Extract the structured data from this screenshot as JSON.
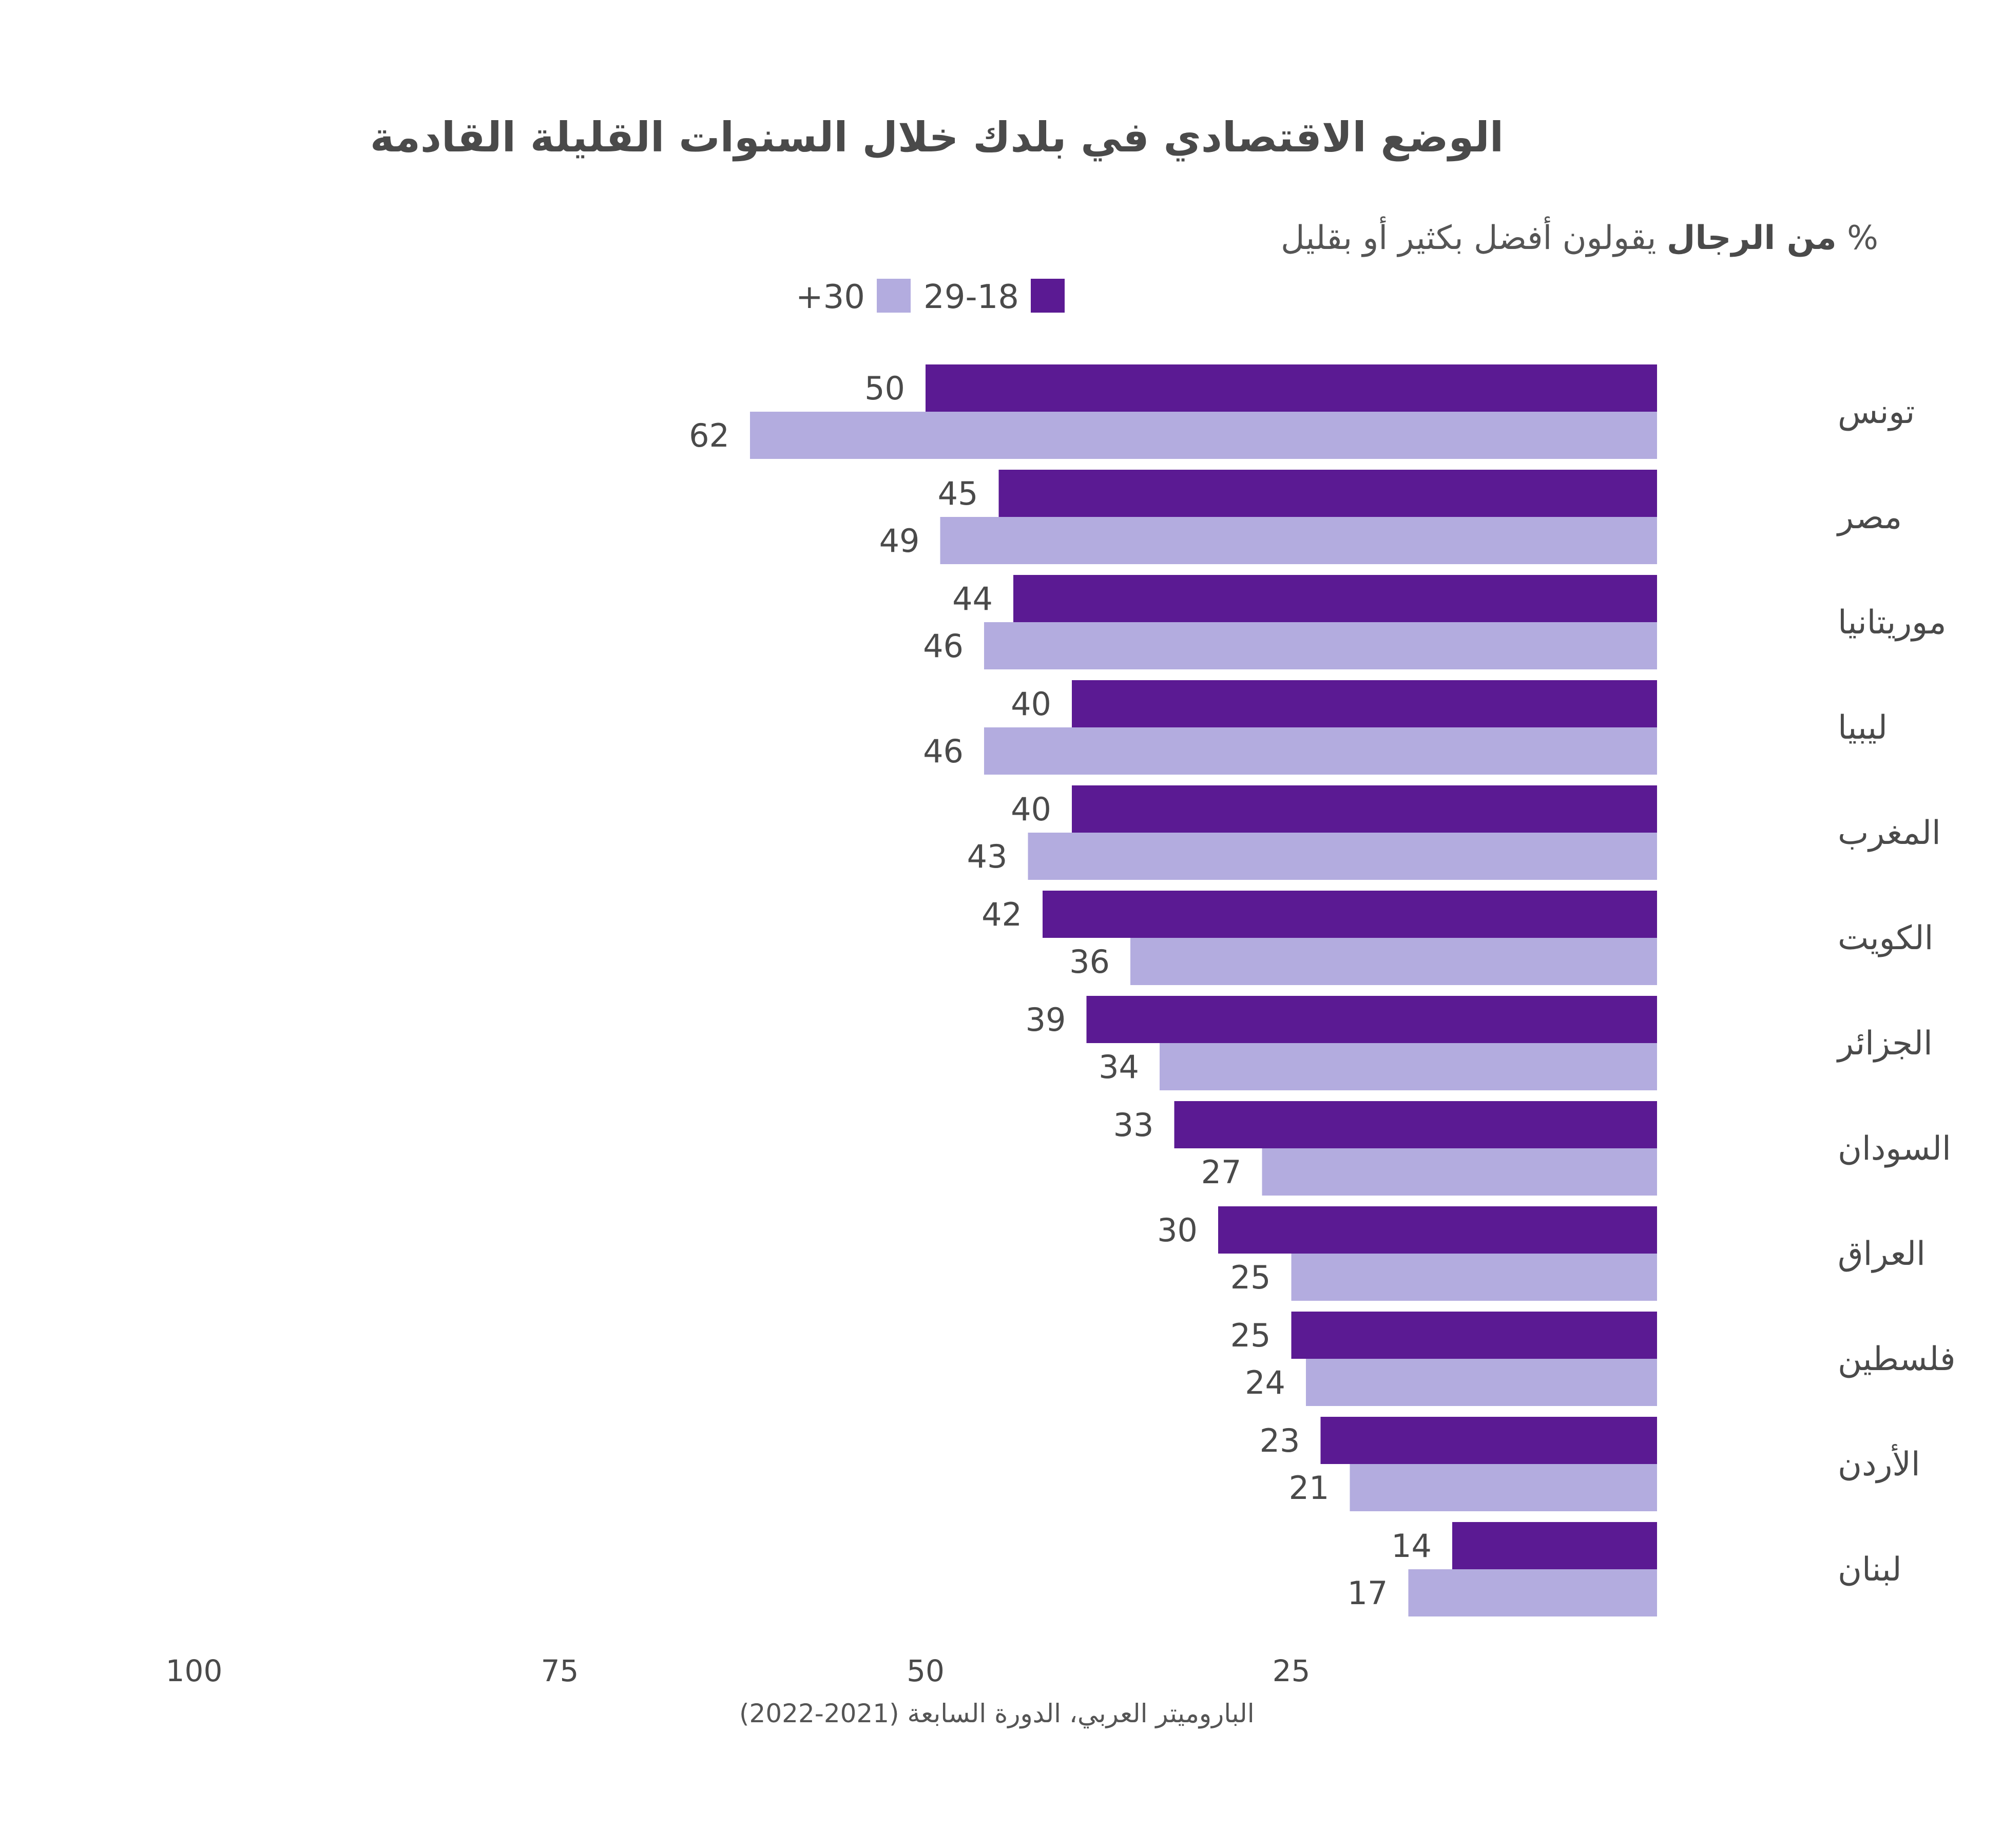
{
  "chart_data": {
    "type": "bar",
    "orientation": "horizontal",
    "direction": "rtl",
    "title": "الوضع الاقتصادي في بلدك خلال السنوات القليلة القادمة",
    "subtitle_prefix": "%",
    "subtitle_bold": "من الرجال",
    "subtitle_rest": "يقولون أفضل بكثير أو بقليل",
    "categories": [
      "تونس",
      "مصر",
      "موريتانيا",
      "ليبيا",
      "المغرب",
      "الكويت",
      "الجزائر",
      "السودان",
      "العراق",
      "فلسطين",
      "الأردن",
      "لبنان"
    ],
    "series": [
      {
        "name": "29-18",
        "color": "#5b1a93",
        "values": [
          50,
          45,
          44,
          40,
          40,
          42,
          39,
          33,
          30,
          25,
          23,
          14
        ]
      },
      {
        "name": "+30",
        "color": "#b3acdf",
        "values": [
          62,
          49,
          46,
          46,
          43,
          36,
          34,
          27,
          25,
          24,
          21,
          17
        ]
      }
    ],
    "xlim": [
      0,
      100
    ],
    "ticks": [
      "100",
      "75",
      "50",
      "25"
    ],
    "tick_values": [
      100,
      75,
      50,
      25
    ],
    "grid": false,
    "legend_position": "top-center",
    "source": "الباروميتر العربي، الدورة السابعة (2021-2022)"
  }
}
